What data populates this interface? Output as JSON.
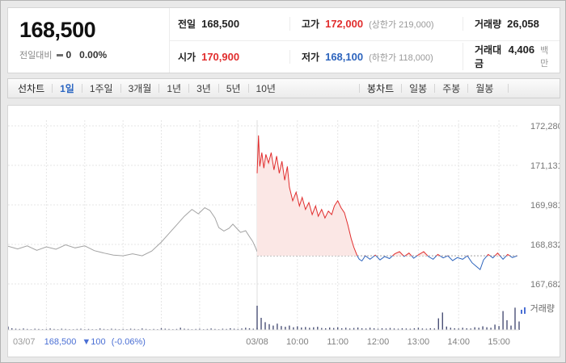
{
  "header": {
    "price": "168,500",
    "change_label": "전일대비",
    "change_value": "0",
    "change_percent": "0.00%",
    "stats": {
      "row1": [
        {
          "label": "전일",
          "value": "168,500",
          "extra": ""
        },
        {
          "label": "고가",
          "value": "172,000",
          "extra": "(상한가 219,000)"
        },
        {
          "label": "거래량",
          "value": "26,058",
          "extra": ""
        }
      ],
      "row2": [
        {
          "label": "시가",
          "value": "170,900",
          "extra": ""
        },
        {
          "label": "저가",
          "value": "168,100",
          "extra": "(하한가 118,000)"
        },
        {
          "label": "거래대금",
          "value": "4,406",
          "extra": "백만"
        }
      ]
    }
  },
  "toolbar": {
    "line_chart_label": "선차트",
    "line_tabs": [
      {
        "label": "1일",
        "active": true
      },
      {
        "label": "1주일"
      },
      {
        "label": "3개월"
      },
      {
        "label": "1년"
      },
      {
        "label": "3년"
      },
      {
        "label": "5년"
      },
      {
        "label": "10년"
      }
    ],
    "candle_chart_label": "봉차트",
    "candle_tabs": [
      {
        "label": "일봉"
      },
      {
        "label": "주봉"
      },
      {
        "label": "월봉"
      }
    ]
  },
  "chart_data": {
    "type": "line",
    "title": "",
    "y_ticks": [
      "172,280",
      "171,131",
      "169,981",
      "168,832",
      "167,682"
    ],
    "y_tick_values": [
      172280,
      171131,
      169981,
      168832,
      167682
    ],
    "ylim": [
      167682,
      172280
    ],
    "x_labels": [
      "03/08",
      "10:00",
      "11:00",
      "12:00",
      "13:00",
      "14:00",
      "15:00"
    ],
    "prev_close": 168500,
    "volume_label": "거래량",
    "footer_left": {
      "date": "03/07",
      "price": "168,500",
      "change": "▼100",
      "percent": "(-0.06%)"
    },
    "colors": {
      "up": "#e12d2d",
      "down": "#2d64bd",
      "prev_day_line": "#a3a3a3",
      "fill_up": "#fbe7e5",
      "volume_bar": "#4a5076",
      "grid": "#e5e5e5",
      "prev_close_line": "#999999"
    },
    "series": [
      {
        "name": "03/07",
        "color": "#a3a3a3",
        "points": [
          [
            0,
            168780
          ],
          [
            15,
            168700
          ],
          [
            30,
            168790
          ],
          [
            45,
            168660
          ],
          [
            60,
            168760
          ],
          [
            75,
            168690
          ],
          [
            90,
            168820
          ],
          [
            105,
            168730
          ],
          [
            120,
            168790
          ],
          [
            135,
            168650
          ],
          [
            150,
            168580
          ],
          [
            165,
            168520
          ],
          [
            180,
            168500
          ],
          [
            195,
            168560
          ],
          [
            210,
            168500
          ],
          [
            225,
            168640
          ],
          [
            240,
            168900
          ],
          [
            252,
            169150
          ],
          [
            264,
            169400
          ],
          [
            276,
            169650
          ],
          [
            288,
            169850
          ],
          [
            298,
            169720
          ],
          [
            308,
            169900
          ],
          [
            316,
            169820
          ],
          [
            324,
            169600
          ],
          [
            330,
            169320
          ],
          [
            338,
            169220
          ],
          [
            346,
            169300
          ],
          [
            352,
            169420
          ],
          [
            358,
            169300
          ],
          [
            364,
            169180
          ],
          [
            372,
            169230
          ],
          [
            378,
            169060
          ],
          [
            383,
            168920
          ],
          [
            387,
            168760
          ],
          [
            390,
            168620
          ]
        ]
      },
      {
        "name": "03/08",
        "color_up": "#e12d2d",
        "color_down": "#2d64bd",
        "fill_up": "#fbe7e5",
        "points": [
          [
            0,
            170900
          ],
          [
            2,
            172000
          ],
          [
            4,
            171100
          ],
          [
            7,
            171500
          ],
          [
            10,
            171050
          ],
          [
            13,
            171450
          ],
          [
            17,
            171200
          ],
          [
            21,
            171500
          ],
          [
            25,
            171000
          ],
          [
            29,
            171400
          ],
          [
            33,
            170900
          ],
          [
            37,
            171250
          ],
          [
            41,
            170700
          ],
          [
            45,
            171100
          ],
          [
            48,
            170500
          ],
          [
            53,
            170100
          ],
          [
            58,
            170350
          ],
          [
            63,
            169950
          ],
          [
            67,
            170200
          ],
          [
            72,
            169850
          ],
          [
            77,
            170050
          ],
          [
            82,
            169700
          ],
          [
            87,
            169950
          ],
          [
            91,
            169650
          ],
          [
            96,
            169850
          ],
          [
            101,
            169600
          ],
          [
            106,
            169800
          ],
          [
            111,
            169700
          ],
          [
            115,
            169950
          ],
          [
            120,
            170100
          ],
          [
            125,
            169900
          ],
          [
            130,
            169750
          ],
          [
            135,
            169400
          ],
          [
            140,
            169000
          ],
          [
            144,
            168750
          ],
          [
            149,
            168500
          ],
          [
            152,
            168400
          ],
          [
            156,
            168350
          ],
          [
            161,
            168500
          ],
          [
            168,
            168400
          ],
          [
            176,
            168520
          ],
          [
            183,
            168380
          ],
          [
            190,
            168480
          ],
          [
            197,
            168420
          ],
          [
            205,
            168560
          ],
          [
            212,
            168620
          ],
          [
            219,
            168480
          ],
          [
            226,
            168580
          ],
          [
            233,
            168430
          ],
          [
            241,
            168540
          ],
          [
            248,
            168620
          ],
          [
            255,
            168480
          ],
          [
            262,
            168400
          ],
          [
            269,
            168540
          ],
          [
            277,
            168440
          ],
          [
            284,
            168500
          ],
          [
            291,
            168360
          ],
          [
            298,
            168450
          ],
          [
            306,
            168400
          ],
          [
            313,
            168500
          ],
          [
            320,
            168300
          ],
          [
            327,
            168180
          ],
          [
            332,
            168100
          ],
          [
            337,
            168380
          ],
          [
            344,
            168540
          ],
          [
            351,
            168440
          ],
          [
            358,
            168580
          ],
          [
            366,
            168400
          ],
          [
            373,
            168540
          ],
          [
            380,
            168450
          ],
          [
            387,
            168500
          ]
        ]
      }
    ],
    "volume": {
      "day1": [
        14,
        7,
        5,
        4,
        6,
        4,
        3,
        5,
        4,
        3,
        4,
        6,
        4,
        3,
        5,
        4,
        3,
        3,
        4,
        5,
        3,
        4,
        3,
        3,
        6,
        4,
        3,
        5,
        4,
        3,
        4,
        3,
        5,
        4,
        3,
        6,
        4,
        3,
        4,
        3,
        7,
        5,
        4,
        3,
        4,
        9,
        5,
        4,
        3,
        4,
        5,
        3,
        4,
        6,
        4,
        3,
        5,
        4,
        7,
        5,
        4,
        6,
        9,
        7,
        5,
        8
      ],
      "day2": [
        100,
        50,
        32,
        24,
        18,
        26,
        16,
        13,
        18,
        11,
        15,
        10,
        12,
        9,
        11,
        13,
        8,
        7,
        10,
        8,
        11,
        7,
        9,
        6,
        8,
        10,
        7,
        6,
        9,
        7,
        5,
        7,
        6,
        8,
        6,
        5,
        7,
        6,
        5,
        7,
        9,
        6,
        5,
        7,
        6,
        48,
        72,
        14,
        9,
        7,
        6,
        9,
        7,
        6,
        11,
        9,
        15,
        11,
        9,
        22,
        16,
        78,
        40,
        18,
        92,
        35
      ]
    }
  }
}
